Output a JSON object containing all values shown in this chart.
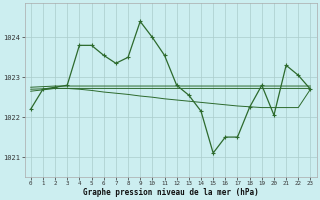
{
  "title": "Graphe pression niveau de la mer (hPa)",
  "background_color": "#cceef0",
  "grid_color": "#aacccc",
  "line_color": "#2d6a2d",
  "xlim": [
    -0.5,
    23.5
  ],
  "ylim": [
    1020.5,
    1024.85
  ],
  "yticks": [
    1021,
    1022,
    1023,
    1024
  ],
  "xticks": [
    0,
    1,
    2,
    3,
    4,
    5,
    6,
    7,
    8,
    9,
    10,
    11,
    12,
    13,
    14,
    15,
    16,
    17,
    18,
    19,
    20,
    21,
    22,
    23
  ],
  "series_main": {
    "x": [
      0,
      1,
      2,
      3,
      4,
      5,
      6,
      7,
      8,
      9,
      10,
      11,
      12,
      13,
      14,
      15,
      16,
      17,
      18,
      19,
      20,
      21,
      22,
      23
    ],
    "y": [
      1022.2,
      1022.7,
      1022.75,
      1022.8,
      1023.8,
      1023.8,
      1023.55,
      1023.35,
      1023.5,
      1024.4,
      1024.0,
      1023.55,
      1022.8,
      1022.55,
      1022.15,
      1021.1,
      1021.5,
      1021.5,
      1022.25,
      1022.8,
      1022.05,
      1023.3,
      1023.05,
      1022.7
    ]
  },
  "series_avg1": {
    "x": [
      0,
      2,
      3,
      4,
      5,
      6,
      7,
      8,
      9,
      10,
      11,
      12,
      13,
      14,
      15,
      16,
      17,
      18,
      19,
      20,
      21,
      22,
      23
    ],
    "y": [
      1022.75,
      1022.78,
      1022.78,
      1022.78,
      1022.78,
      1022.78,
      1022.78,
      1022.78,
      1022.78,
      1022.78,
      1022.78,
      1022.78,
      1022.78,
      1022.78,
      1022.78,
      1022.78,
      1022.78,
      1022.78,
      1022.78,
      1022.78,
      1022.78,
      1022.78,
      1022.78
    ]
  },
  "series_avg2": {
    "x": [
      0,
      2,
      3,
      4,
      5,
      6,
      7,
      8,
      9,
      10,
      11,
      12,
      13,
      14,
      15,
      16,
      17,
      18,
      19,
      20,
      21,
      22,
      23
    ],
    "y": [
      1022.7,
      1022.72,
      1022.72,
      1022.72,
      1022.72,
      1022.72,
      1022.72,
      1022.72,
      1022.72,
      1022.72,
      1022.72,
      1022.72,
      1022.72,
      1022.72,
      1022.72,
      1022.72,
      1022.72,
      1022.72,
      1022.72,
      1022.72,
      1022.72,
      1022.72,
      1022.72
    ]
  },
  "series_decline": {
    "x": [
      0,
      2,
      3,
      4,
      5,
      6,
      7,
      8,
      9,
      10,
      11,
      12,
      13,
      14,
      15,
      16,
      17,
      18,
      19,
      20,
      21,
      22,
      23
    ],
    "y": [
      1022.65,
      1022.72,
      1022.72,
      1022.7,
      1022.67,
      1022.63,
      1022.6,
      1022.57,
      1022.53,
      1022.5,
      1022.46,
      1022.43,
      1022.4,
      1022.37,
      1022.34,
      1022.31,
      1022.28,
      1022.26,
      1022.24,
      1022.24,
      1022.24,
      1022.24,
      1022.7
    ]
  }
}
